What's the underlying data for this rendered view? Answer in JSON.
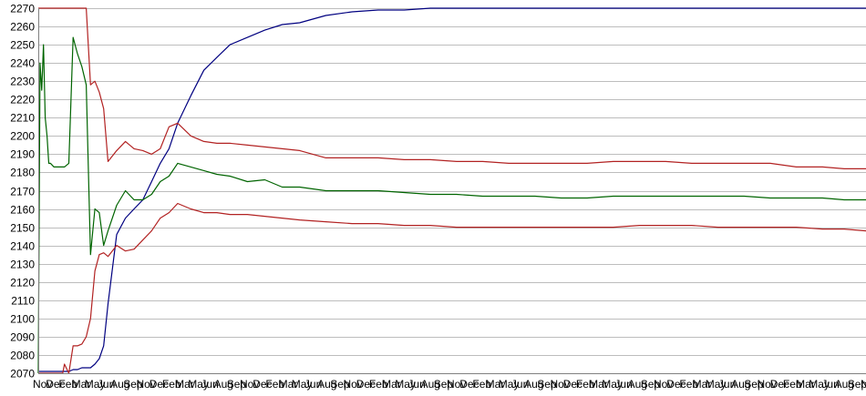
{
  "chart_data": {
    "type": "line",
    "title": "",
    "xlabel": "",
    "ylabel": "",
    "ylim": [
      2070,
      2270
    ],
    "y_ticks": [
      2070,
      2080,
      2090,
      2100,
      2110,
      2120,
      2130,
      2140,
      2150,
      2160,
      2170,
      2180,
      2190,
      2200,
      2210,
      2220,
      2230,
      2240,
      2250,
      2260,
      2270
    ],
    "x_tick_labels": [
      "Nov",
      "Dec",
      "Feb",
      "Mar",
      "May",
      "Jun",
      "Aug",
      "Sep",
      "Nov",
      "Dec",
      "Feb",
      "Mar",
      "May",
      "Jun",
      "Aug",
      "Sep",
      "Nov",
      "Dec",
      "Feb",
      "Mar",
      "May",
      "Jun",
      "Aug",
      "Sep",
      "Nov",
      "Dec",
      "Feb",
      "Mar",
      "May",
      "Jun",
      "Aug",
      "Sep",
      "Nov",
      "Dec",
      "Feb",
      "Mar",
      "May",
      "Jun",
      "Aug",
      "Sep",
      "Nov",
      "Dec",
      "Feb",
      "Mar",
      "May",
      "Jun",
      "Aug",
      "Sep",
      "Nov",
      "Dec",
      "Feb",
      "Mar",
      "May",
      "Jun",
      "Aug",
      "Sep",
      "Nov",
      "Dec",
      "Feb",
      "Mar",
      "May",
      "Jun",
      "Aug",
      "Sep",
      "No"
    ],
    "grid": true,
    "x": [
      0,
      2,
      4,
      6,
      8,
      10,
      12,
      14,
      16,
      18,
      20,
      22,
      24,
      26,
      28,
      30,
      35,
      40,
      45,
      50,
      55,
      60,
      65,
      70,
      75,
      80,
      90,
      100,
      110,
      120,
      130,
      140,
      150,
      160,
      175,
      190,
      205,
      220,
      240,
      260,
      280,
      300,
      330,
      360,
      390,
      420,
      450,
      480,
      510,
      540,
      570,
      600,
      630,
      660,
      690,
      720,
      750,
      780,
      810,
      840,
      870,
      900,
      925,
      950
    ],
    "series": [
      {
        "color": "#000080",
        "values": [
          2071,
          2071,
          2071,
          2071,
          2071,
          2071,
          2071,
          2071,
          2071,
          2071,
          2071,
          2071,
          2071,
          2071,
          2071,
          2071,
          2071,
          2072,
          2072,
          2073,
          2073,
          2073,
          2075,
          2078,
          2085,
          2108,
          2146,
          2155,
          2160,
          2165,
          2175,
          2185,
          2193,
          2207,
          2222,
          2236,
          2243,
          2250,
          2254,
          2258,
          2261,
          2262,
          2266,
          2268,
          2269,
          2269,
          2270,
          2270,
          2270,
          2270,
          2270,
          2270,
          2270,
          2270,
          2270,
          2270,
          2270,
          2270,
          2270,
          2270,
          2270,
          2270,
          2270,
          2270
        ]
      },
      {
        "color": "#006400",
        "values": [
          2070,
          2240,
          2225,
          2250,
          2210,
          2200,
          2185,
          2185,
          2184,
          2183,
          2183,
          2183,
          2183,
          2183,
          2183,
          2183,
          2185,
          2254,
          2245,
          2238,
          2228,
          2135,
          2160,
          2158,
          2140,
          2148,
          2162,
          2170,
          2165,
          2165,
          2168,
          2175,
          2178,
          2185,
          2183,
          2181,
          2179,
          2178,
          2175,
          2176,
          2172,
          2172,
          2170,
          2170,
          2170,
          2169,
          2168,
          2168,
          2167,
          2167,
          2167,
          2166,
          2166,
          2167,
          2167,
          2167,
          2167,
          2167,
          2167,
          2166,
          2166,
          2166,
          2165,
          2165
        ]
      },
      {
        "color": "#B22222",
        "values": [
          2270,
          2270,
          2270,
          2270,
          2270,
          2270,
          2270,
          2270,
          2270,
          2270,
          2270,
          2270,
          2270,
          2270,
          2270,
          2270,
          2270,
          2270,
          2270,
          2270,
          2270,
          2228,
          2230,
          2224,
          2215,
          2186,
          2192,
          2197,
          2193,
          2192,
          2190,
          2193,
          2205,
          2207,
          2200,
          2197,
          2196,
          2196,
          2195,
          2194,
          2193,
          2192,
          2188,
          2188,
          2188,
          2187,
          2187,
          2186,
          2186,
          2185,
          2185,
          2185,
          2185,
          2186,
          2186,
          2186,
          2185,
          2185,
          2185,
          2185,
          2183,
          2183,
          2182,
          2182
        ]
      },
      {
        "color": "#B22222",
        "values": [
          2070,
          2070,
          2070,
          2070,
          2070,
          2070,
          2070,
          2070,
          2070,
          2070,
          2070,
          2070,
          2070,
          2070,
          2070,
          2075,
          2070,
          2085,
          2085,
          2086,
          2090,
          2100,
          2126,
          2135,
          2136,
          2134,
          2140,
          2137,
          2138,
          2143,
          2148,
          2155,
          2158,
          2163,
          2160,
          2158,
          2158,
          2157,
          2157,
          2156,
          2155,
          2154,
          2153,
          2152,
          2152,
          2151,
          2151,
          2150,
          2150,
          2150,
          2150,
          2150,
          2150,
          2150,
          2151,
          2151,
          2151,
          2150,
          2150,
          2150,
          2150,
          2149,
          2149,
          2148
        ]
      }
    ]
  }
}
